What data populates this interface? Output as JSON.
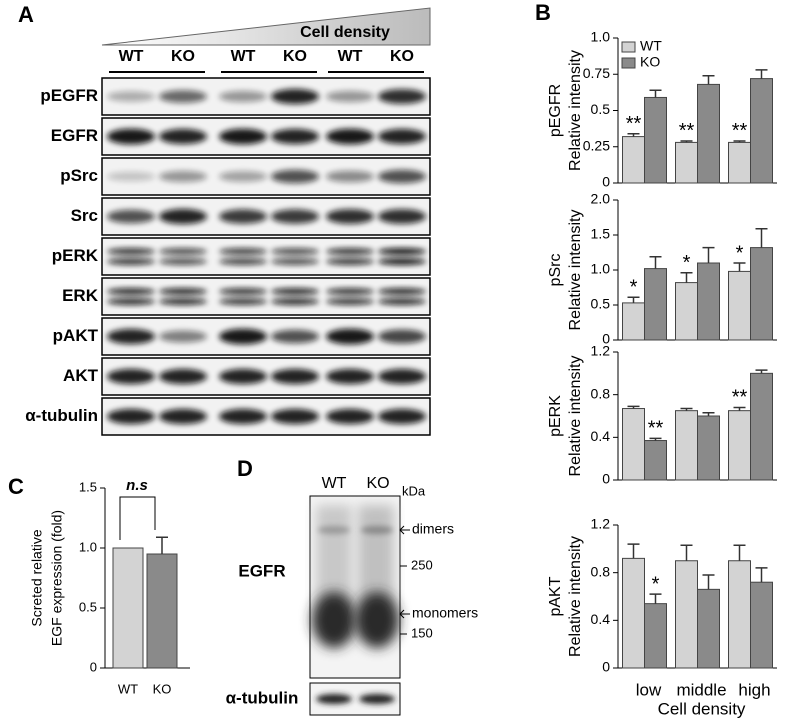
{
  "panel_a": {
    "label": "A",
    "density_label": "Cell density",
    "lanes": [
      "WT",
      "KO",
      "WT",
      "KO",
      "WT",
      "KO"
    ],
    "rows": [
      "pEGFR",
      "EGFR",
      "pSrc",
      "Src",
      "pERK",
      "ERK",
      "pAKT",
      "AKT",
      "α-tubulin"
    ]
  },
  "panel_b": {
    "label": "B"
  },
  "panel_c": {
    "label": "C"
  },
  "panel_d": {
    "label": "D",
    "lanes": [
      "WT",
      "KO"
    ],
    "unit": "kDa",
    "rows": [
      "EGFR",
      "α-tubulin"
    ],
    "markers": [
      "250",
      "150"
    ],
    "arrows": [
      "dimers",
      "monomers"
    ]
  },
  "chart_data": [
    {
      "type": "bar",
      "categories": [
        "low",
        "middle",
        "high"
      ],
      "x_label": "Cell density",
      "series": [
        {
          "name": "WT",
          "color": "#d3d3d3"
        },
        {
          "name": "KO",
          "color": "#8a8a8a"
        }
      ],
      "panels": [
        {
          "title": "pEGFR",
          "y_label": "Relative intensity",
          "ylim": [
            0,
            1
          ],
          "yticks": [
            0,
            0.25,
            0.5,
            0.75,
            {
              "value": 1,
              "label": "1.0"
            }
          ],
          "values": [
            [
              0.32,
              0.28,
              0.28
            ],
            [
              0.59,
              0.68,
              0.72
            ]
          ],
          "errors": [
            [
              0.02,
              0.01,
              0.01
            ],
            [
              0.05,
              0.06,
              0.06
            ]
          ],
          "significance": [
            [
              "**",
              "**",
              "**"
            ],
            [
              null,
              null,
              null
            ]
          ]
        },
        {
          "title": "pSrc",
          "y_label": "Relative intensity",
          "ylim": [
            0,
            2
          ],
          "yticks": [
            0,
            0.5,
            {
              "value": 1,
              "label": "1.0"
            },
            1.5,
            {
              "value": 2,
              "label": "2.0"
            }
          ],
          "values": [
            [
              0.53,
              0.82,
              0.98
            ],
            [
              1.02,
              1.1,
              1.32
            ]
          ],
          "errors": [
            [
              0.08,
              0.14,
              0.12
            ],
            [
              0.17,
              0.22,
              0.27
            ]
          ],
          "significance": [
            [
              "*",
              "*",
              "*"
            ],
            [
              null,
              null,
              null
            ]
          ]
        },
        {
          "title": "pERK",
          "y_label": "Relative intensity",
          "ylim": [
            0,
            1.2
          ],
          "yticks": [
            0,
            0.4,
            0.8,
            1.2
          ],
          "values": [
            [
              0.67,
              0.65,
              0.65
            ],
            [
              0.37,
              0.6,
              1.0
            ]
          ],
          "errors": [
            [
              0.02,
              0.02,
              0.03
            ],
            [
              0.02,
              0.03,
              0.03
            ]
          ],
          "significance": [
            [
              null,
              null,
              "**"
            ],
            [
              "**",
              null,
              null
            ]
          ]
        },
        {
          "title": "pAKT",
          "y_label": "Relative intensity",
          "ylim": [
            0,
            1.2
          ],
          "yticks": [
            0,
            0.4,
            0.8,
            1.2
          ],
          "values": [
            [
              0.92,
              0.9,
              0.9
            ],
            [
              0.54,
              0.66,
              0.72
            ]
          ],
          "errors": [
            [
              0.12,
              0.13,
              0.13
            ],
            [
              0.08,
              0.12,
              0.12
            ]
          ],
          "significance": [
            [
              null,
              null,
              null
            ],
            [
              "*",
              null,
              null
            ]
          ]
        }
      ]
    },
    {
      "type": "bar",
      "y_label": [
        "Screted relative",
        "EGF expression (fold)"
      ],
      "categories": [
        "WT",
        "KO"
      ],
      "values": [
        1.0,
        0.95
      ],
      "errors": [
        null,
        0.14
      ],
      "colors": [
        "#d3d3d3",
        "#8a8a8a"
      ],
      "ylim": [
        0,
        1.5
      ],
      "yticks": [
        0,
        0.5,
        {
          "value": 1,
          "label": "1.0"
        },
        1.5
      ],
      "annotation": "n.s"
    }
  ]
}
